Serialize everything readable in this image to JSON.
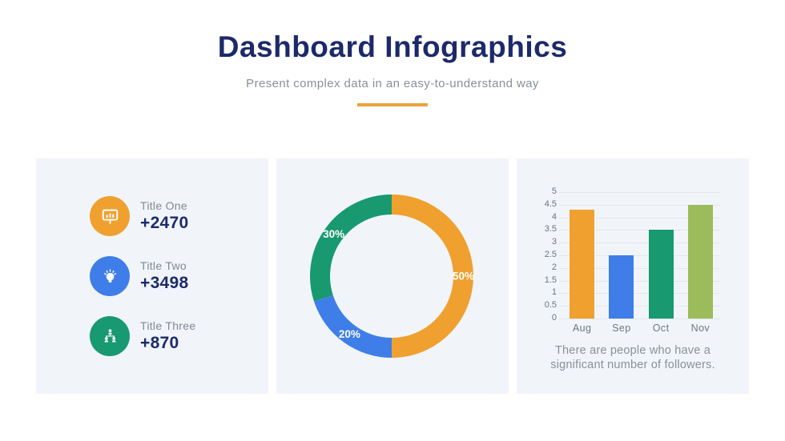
{
  "header": {
    "title": "Dashboard Infographics",
    "subtitle": "Present complex data in an easy-to-understand way"
  },
  "colors": {
    "navy": "#1C2A6B",
    "orange": "#EFA02F",
    "blue": "#3F7EE8",
    "green": "#18996F",
    "olive": "#9CBB5B",
    "panel_background": "#F1F5FA",
    "divider": "#E9A23B",
    "gray_text": "#8A9099"
  },
  "stats": {
    "items": [
      {
        "label": "Title One",
        "value": "+2470",
        "icon": "presentation-chart-icon",
        "color": "#EFA02F"
      },
      {
        "label": "Title Two",
        "value": "+3498",
        "icon": "lightbulb-icon",
        "color": "#3F7EE8"
      },
      {
        "label": "Title Three",
        "value": "+870",
        "icon": "org-chart-icon",
        "color": "#18996F"
      }
    ]
  },
  "chart_data": [
    {
      "type": "pie",
      "subtype": "donut",
      "labels": [
        "50%",
        "20%",
        "30%"
      ],
      "values": [
        50,
        20,
        30
      ],
      "colors": [
        "#EFA02F",
        "#3F7EE8",
        "#18996F"
      ],
      "start_angle_deg": 0,
      "direction": "clockwise",
      "legend_position": "none"
    },
    {
      "type": "bar",
      "categories": [
        "Aug",
        "Sep",
        "Oct",
        "Nov"
      ],
      "values": [
        4.3,
        2.5,
        3.5,
        4.5
      ],
      "colors": [
        "#EFA02F",
        "#3F7EE8",
        "#18996F",
        "#9CBB5B"
      ],
      "title": "",
      "xlabel": "",
      "ylabel": "",
      "ylim": [
        0,
        5
      ],
      "ytick_step": 0.5,
      "grid": true,
      "caption": "There are people who have a significant number of followers."
    }
  ]
}
